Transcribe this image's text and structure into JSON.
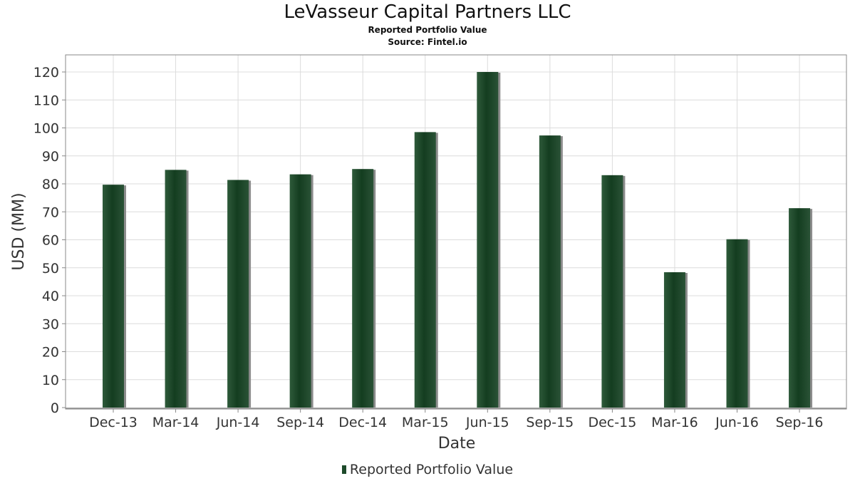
{
  "title": "LeVasseur Capital Partners LLC",
  "subtitle": "Reported Portfolio Value",
  "source": "Source: Fintel.io",
  "colors": {
    "bar": "#1d4a2a",
    "bar_shadow": "#8c8c8c",
    "grid": "#dcdcdc",
    "frame": "#888888"
  },
  "chart_data": {
    "type": "bar",
    "title": "LeVasseur Capital Partners LLC",
    "subtitle": "Reported Portfolio Value",
    "xlabel": "Date",
    "ylabel": "USD (MM)",
    "ylim": [
      0,
      126
    ],
    "yticks": [
      0,
      10,
      20,
      30,
      40,
      50,
      60,
      70,
      80,
      90,
      100,
      110,
      120
    ],
    "grid": true,
    "legend_position": "bottom-center",
    "categories": [
      "Dec-13",
      "Mar-14",
      "Jun-14",
      "Sep-14",
      "Dec-14",
      "Mar-15",
      "Jun-15",
      "Sep-15",
      "Dec-15",
      "Mar-16",
      "Jun-16",
      "Sep-16"
    ],
    "series": [
      {
        "name": "Reported Portfolio Value",
        "values": [
          79.7,
          85.0,
          81.4,
          83.4,
          85.3,
          98.5,
          120.0,
          97.3,
          83.1,
          48.4,
          60.2,
          71.3
        ]
      }
    ]
  }
}
